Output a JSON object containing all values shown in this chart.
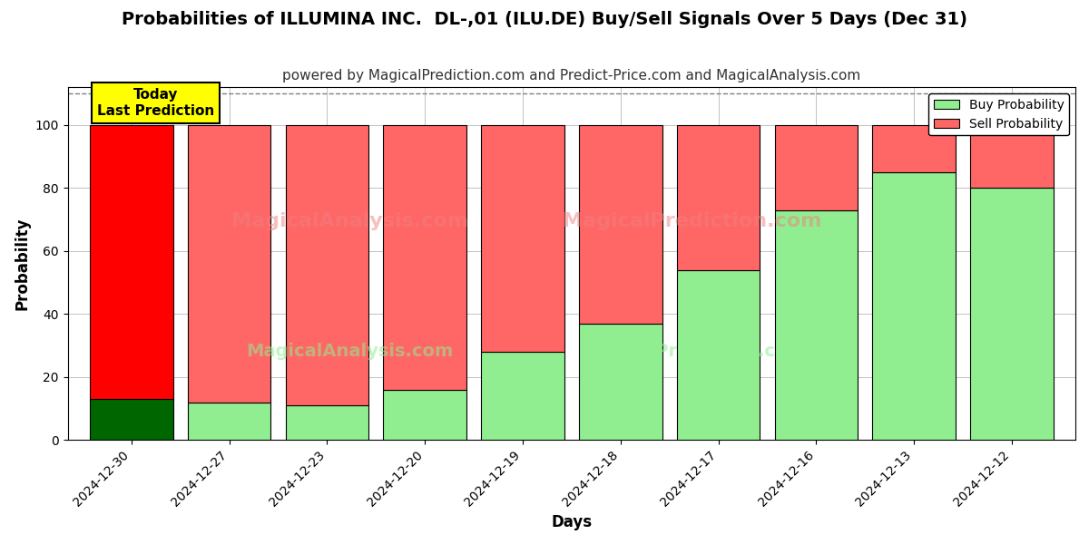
{
  "title": "Probabilities of ILLUMINA INC.  DL-,01 (ILU.DE) Buy/Sell Signals Over 5 Days (Dec 31)",
  "subtitle": "powered by MagicalPrediction.com and Predict-Price.com and MagicalAnalysis.com",
  "xlabel": "Days",
  "ylabel": "Probability",
  "categories": [
    "2024-12-30",
    "2024-12-27",
    "2024-12-23",
    "2024-12-20",
    "2024-12-19",
    "2024-12-18",
    "2024-12-17",
    "2024-12-16",
    "2024-12-13",
    "2024-12-12"
  ],
  "buy_values": [
    13,
    12,
    11,
    16,
    28,
    37,
    54,
    73,
    85,
    80
  ],
  "sell_values": [
    87,
    88,
    89,
    84,
    72,
    63,
    46,
    27,
    15,
    20
  ],
  "first_bar_buy_color": "#006600",
  "first_bar_sell_color": "#FF0000",
  "other_buy_color": "#90EE90",
  "other_sell_color": "#FF6666",
  "bar_edge_color": "#000000",
  "bar_width": 0.85,
  "ylim": [
    0,
    112
  ],
  "yticks": [
    0,
    20,
    40,
    60,
    80,
    100
  ],
  "dashed_line_y": 110,
  "legend_buy_label": "Buy Probability",
  "legend_sell_label": "Sell Probability",
  "legend_buy_color": "#90EE90",
  "legend_sell_color": "#FF6666",
  "today_box_text": "Today\nLast Prediction",
  "today_box_color": "#FFFF00",
  "grid_color": "#AAAAAA",
  "background_color": "#FFFFFF",
  "title_fontsize": 14,
  "subtitle_fontsize": 11,
  "axis_label_fontsize": 12,
  "tick_fontsize": 10
}
